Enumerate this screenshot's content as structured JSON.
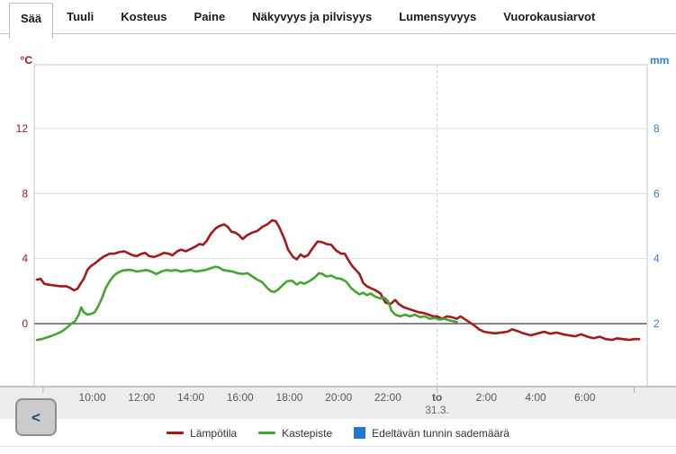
{
  "tabs": {
    "items": [
      {
        "label": "Sää",
        "active": true
      },
      {
        "label": "Tuuli",
        "active": false
      },
      {
        "label": "Kosteus",
        "active": false
      },
      {
        "label": "Paine",
        "active": false
      },
      {
        "label": "Näkyvyys ja pilvisyys",
        "active": false
      },
      {
        "label": "Lumensyvyys",
        "active": false
      },
      {
        "label": "Vuorokausiarvot",
        "active": false
      }
    ]
  },
  "nav": {
    "prev_label": "<"
  },
  "legend": {
    "items": [
      {
        "label": "Lämpötila",
        "swatch": "line",
        "color": "#A11B1B"
      },
      {
        "label": "Kastepiste",
        "swatch": "line",
        "color": "#44A532"
      },
      {
        "label": "Edeltävän tunnin sademäärä",
        "swatch": "square",
        "color": "#2374D4"
      }
    ]
  },
  "chart_data": {
    "type": "line",
    "title": "",
    "x": {
      "lim": [
        7.64,
        32.53
      ],
      "day_boundary": 24,
      "minor_ticks": [
        8,
        24,
        32
      ],
      "labels": [
        {
          "t": 10,
          "text": "10:00"
        },
        {
          "t": 12,
          "text": "12:00"
        },
        {
          "t": 14,
          "text": "14:00"
        },
        {
          "t": 16,
          "text": "16:00"
        },
        {
          "t": 18,
          "text": "18:00"
        },
        {
          "t": 20,
          "text": "20:00"
        },
        {
          "t": 22,
          "text": "22:00"
        },
        {
          "t": 24,
          "text": "to",
          "sub": "31.3.",
          "bold": true
        },
        {
          "t": 26,
          "text": "2:00"
        },
        {
          "t": 28,
          "text": "4:00"
        },
        {
          "t": 30,
          "text": "6:00"
        }
      ]
    },
    "ylim": [
      -3.87,
      15.92
    ],
    "y_left": {
      "unit": "°C",
      "color": "#A11B1B",
      "ticks": [
        12,
        8,
        4,
        0
      ],
      "zero_line": 0
    },
    "y_right": {
      "unit": "mm",
      "color": "#2F7ED8",
      "labels": [
        "8",
        "6",
        "4",
        "2"
      ]
    },
    "grid": true,
    "legend_position": "bottom",
    "series": [
      {
        "name": "Lämpötila",
        "type": "line",
        "color": "#A11B1B",
        "points": [
          [
            7.75,
            2.7
          ],
          [
            7.9,
            2.75
          ],
          [
            8.05,
            2.45
          ],
          [
            8.2,
            2.4
          ],
          [
            8.45,
            2.35
          ],
          [
            8.7,
            2.3
          ],
          [
            8.95,
            2.3
          ],
          [
            9.1,
            2.2
          ],
          [
            9.25,
            2.05
          ],
          [
            9.4,
            2.15
          ],
          [
            9.5,
            2.4
          ],
          [
            9.65,
            2.75
          ],
          [
            9.8,
            3.3
          ],
          [
            9.95,
            3.55
          ],
          [
            10.1,
            3.7
          ],
          [
            10.3,
            3.95
          ],
          [
            10.5,
            4.15
          ],
          [
            10.7,
            4.3
          ],
          [
            10.9,
            4.3
          ],
          [
            11.1,
            4.4
          ],
          [
            11.3,
            4.45
          ],
          [
            11.5,
            4.3
          ],
          [
            11.65,
            4.2
          ],
          [
            11.8,
            4.15
          ],
          [
            12.0,
            4.3
          ],
          [
            12.15,
            4.35
          ],
          [
            12.3,
            4.15
          ],
          [
            12.5,
            4.1
          ],
          [
            12.7,
            4.2
          ],
          [
            12.9,
            4.35
          ],
          [
            13.1,
            4.3
          ],
          [
            13.25,
            4.2
          ],
          [
            13.45,
            4.45
          ],
          [
            13.6,
            4.55
          ],
          [
            13.8,
            4.45
          ],
          [
            14.0,
            4.6
          ],
          [
            14.2,
            4.75
          ],
          [
            14.35,
            4.9
          ],
          [
            14.5,
            4.85
          ],
          [
            14.65,
            5.1
          ],
          [
            14.8,
            5.5
          ],
          [
            15.0,
            5.85
          ],
          [
            15.15,
            6.0
          ],
          [
            15.35,
            6.1
          ],
          [
            15.5,
            5.95
          ],
          [
            15.65,
            5.65
          ],
          [
            15.8,
            5.6
          ],
          [
            15.95,
            5.45
          ],
          [
            16.1,
            5.2
          ],
          [
            16.3,
            5.45
          ],
          [
            16.5,
            5.6
          ],
          [
            16.7,
            5.7
          ],
          [
            16.9,
            5.95
          ],
          [
            17.1,
            6.1
          ],
          [
            17.3,
            6.35
          ],
          [
            17.45,
            6.3
          ],
          [
            17.6,
            5.9
          ],
          [
            17.8,
            5.2
          ],
          [
            17.95,
            4.55
          ],
          [
            18.15,
            4.1
          ],
          [
            18.3,
            3.95
          ],
          [
            18.45,
            4.25
          ],
          [
            18.6,
            4.1
          ],
          [
            18.75,
            4.2
          ],
          [
            18.95,
            4.65
          ],
          [
            19.15,
            5.05
          ],
          [
            19.35,
            5.0
          ],
          [
            19.5,
            4.9
          ],
          [
            19.7,
            4.85
          ],
          [
            19.9,
            4.5
          ],
          [
            20.1,
            4.3
          ],
          [
            20.25,
            4.3
          ],
          [
            20.4,
            3.9
          ],
          [
            20.55,
            3.55
          ],
          [
            20.7,
            3.3
          ],
          [
            20.85,
            3.05
          ],
          [
            21.0,
            2.5
          ],
          [
            21.15,
            2.3
          ],
          [
            21.35,
            2.15
          ],
          [
            21.5,
            2.05
          ],
          [
            21.7,
            1.85
          ],
          [
            21.9,
            1.3
          ],
          [
            22.1,
            1.2
          ],
          [
            22.3,
            1.45
          ],
          [
            22.45,
            1.2
          ],
          [
            22.65,
            1.0
          ],
          [
            22.85,
            0.9
          ],
          [
            23.05,
            0.8
          ],
          [
            23.25,
            0.7
          ],
          [
            23.45,
            0.65
          ],
          [
            23.65,
            0.55
          ],
          [
            23.85,
            0.45
          ],
          [
            24.0,
            0.45
          ],
          [
            24.2,
            0.3
          ],
          [
            24.4,
            0.45
          ],
          [
            24.6,
            0.4
          ],
          [
            24.8,
            0.3
          ],
          [
            24.95,
            0.45
          ],
          [
            25.1,
            0.3
          ],
          [
            25.3,
            0.1
          ],
          [
            25.5,
            -0.1
          ],
          [
            25.7,
            -0.35
          ],
          [
            25.9,
            -0.5
          ],
          [
            26.1,
            -0.55
          ],
          [
            26.35,
            -0.6
          ],
          [
            26.6,
            -0.55
          ],
          [
            26.85,
            -0.5
          ],
          [
            27.05,
            -0.35
          ],
          [
            27.25,
            -0.45
          ],
          [
            27.5,
            -0.6
          ],
          [
            27.8,
            -0.72
          ],
          [
            28.1,
            -0.6
          ],
          [
            28.35,
            -0.5
          ],
          [
            28.6,
            -0.62
          ],
          [
            28.85,
            -0.55
          ],
          [
            29.1,
            -0.65
          ],
          [
            29.35,
            -0.72
          ],
          [
            29.6,
            -0.78
          ],
          [
            29.85,
            -0.65
          ],
          [
            30.1,
            -0.8
          ],
          [
            30.35,
            -0.9
          ],
          [
            30.6,
            -0.8
          ],
          [
            30.85,
            -0.95
          ],
          [
            31.1,
            -1.0
          ],
          [
            31.3,
            -0.9
          ],
          [
            31.55,
            -0.95
          ],
          [
            31.8,
            -1.0
          ],
          [
            32.0,
            -0.95
          ],
          [
            32.2,
            -0.95
          ]
        ]
      },
      {
        "name": "Kastepiste",
        "type": "line",
        "color": "#44A532",
        "points": [
          [
            7.75,
            -1.0
          ],
          [
            7.95,
            -0.95
          ],
          [
            8.15,
            -0.85
          ],
          [
            8.35,
            -0.75
          ],
          [
            8.6,
            -0.6
          ],
          [
            8.8,
            -0.45
          ],
          [
            9.0,
            -0.2
          ],
          [
            9.15,
            0.0
          ],
          [
            9.3,
            0.15
          ],
          [
            9.45,
            0.55
          ],
          [
            9.55,
            1.0
          ],
          [
            9.65,
            0.7
          ],
          [
            9.8,
            0.55
          ],
          [
            9.95,
            0.6
          ],
          [
            10.1,
            0.7
          ],
          [
            10.25,
            1.1
          ],
          [
            10.4,
            1.6
          ],
          [
            10.55,
            2.2
          ],
          [
            10.7,
            2.6
          ],
          [
            10.85,
            2.9
          ],
          [
            11.0,
            3.1
          ],
          [
            11.2,
            3.25
          ],
          [
            11.4,
            3.3
          ],
          [
            11.6,
            3.3
          ],
          [
            11.8,
            3.2
          ],
          [
            12.0,
            3.25
          ],
          [
            12.2,
            3.3
          ],
          [
            12.4,
            3.2
          ],
          [
            12.6,
            3.05
          ],
          [
            12.8,
            3.2
          ],
          [
            13.0,
            3.3
          ],
          [
            13.2,
            3.25
          ],
          [
            13.4,
            3.3
          ],
          [
            13.6,
            3.2
          ],
          [
            13.8,
            3.25
          ],
          [
            14.0,
            3.3
          ],
          [
            14.2,
            3.2
          ],
          [
            14.4,
            3.25
          ],
          [
            14.6,
            3.3
          ],
          [
            14.8,
            3.4
          ],
          [
            15.0,
            3.5
          ],
          [
            15.15,
            3.45
          ],
          [
            15.3,
            3.3
          ],
          [
            15.5,
            3.25
          ],
          [
            15.7,
            3.2
          ],
          [
            15.9,
            3.1
          ],
          [
            16.1,
            3.05
          ],
          [
            16.3,
            3.1
          ],
          [
            16.5,
            2.9
          ],
          [
            16.7,
            2.7
          ],
          [
            16.9,
            2.55
          ],
          [
            17.1,
            2.2
          ],
          [
            17.25,
            2.0
          ],
          [
            17.4,
            1.95
          ],
          [
            17.55,
            2.1
          ],
          [
            17.75,
            2.4
          ],
          [
            17.9,
            2.6
          ],
          [
            18.1,
            2.65
          ],
          [
            18.3,
            2.4
          ],
          [
            18.45,
            2.55
          ],
          [
            18.6,
            2.45
          ],
          [
            18.8,
            2.6
          ],
          [
            19.0,
            2.8
          ],
          [
            19.2,
            3.1
          ],
          [
            19.35,
            3.05
          ],
          [
            19.5,
            2.9
          ],
          [
            19.7,
            2.95
          ],
          [
            19.9,
            2.8
          ],
          [
            20.1,
            2.75
          ],
          [
            20.3,
            2.6
          ],
          [
            20.5,
            2.2
          ],
          [
            20.7,
            1.95
          ],
          [
            20.85,
            1.8
          ],
          [
            21.0,
            1.9
          ],
          [
            21.15,
            1.75
          ],
          [
            21.3,
            1.85
          ],
          [
            21.5,
            1.65
          ],
          [
            21.7,
            1.55
          ],
          [
            21.85,
            1.6
          ],
          [
            22.0,
            1.4
          ],
          [
            22.15,
            0.8
          ],
          [
            22.3,
            0.55
          ],
          [
            22.5,
            0.45
          ],
          [
            22.7,
            0.55
          ],
          [
            22.9,
            0.45
          ],
          [
            23.1,
            0.55
          ],
          [
            23.3,
            0.4
          ],
          [
            23.5,
            0.45
          ],
          [
            23.7,
            0.3
          ],
          [
            23.9,
            0.35
          ],
          [
            24.1,
            0.25
          ],
          [
            24.3,
            0.3
          ],
          [
            24.5,
            0.2
          ],
          [
            24.65,
            0.15
          ],
          [
            24.8,
            0.1
          ]
        ]
      },
      {
        "name": "Edeltävän tunnin sademäärä",
        "type": "bar",
        "color": "#2374D4",
        "points": []
      }
    ]
  }
}
